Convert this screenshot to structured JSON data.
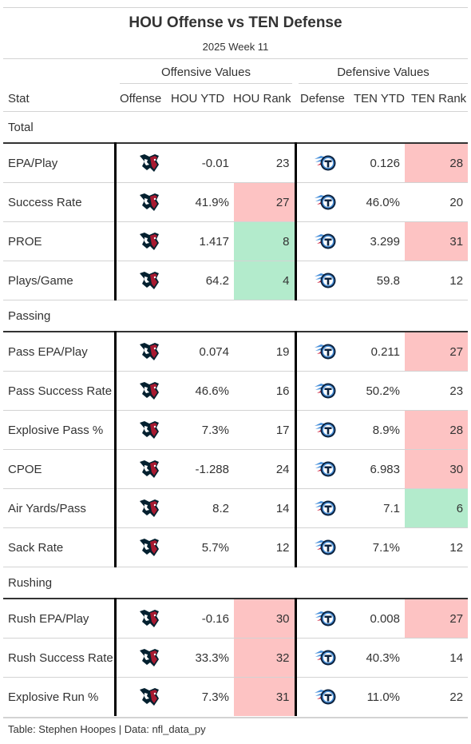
{
  "title": "HOU Offense vs TEN Defense",
  "subtitle": "2025 Week 11",
  "spanners": {
    "offense": "Offensive Values",
    "defense": "Defensive Values"
  },
  "columns": {
    "stat": "Stat",
    "offense": "Offense",
    "hou_ytd": "HOU YTD",
    "hou_rank": "HOU Rank",
    "defense": "Defense",
    "ten_ytd": "TEN YTD",
    "ten_rank": "TEN Rank"
  },
  "logos": {
    "offense": "houston-texans-logo",
    "defense": "tennessee-titans-logo"
  },
  "colors": {
    "bad": "#fdc3c3",
    "good": "#b3ebcc",
    "texans_navy": "#03202f",
    "texans_red": "#a71930",
    "titans_navy": "#0c2340",
    "titans_blue": "#4b92db"
  },
  "groups": [
    {
      "label": "Total",
      "rows": [
        {
          "stat": "EPA/Play",
          "hou_ytd": "-0.01",
          "hou_rank": "23",
          "hou_class": "",
          "ten_ytd": "0.126",
          "ten_rank": "28",
          "ten_class": "bad"
        },
        {
          "stat": "Success Rate",
          "hou_ytd": "41.9%",
          "hou_rank": "27",
          "hou_class": "bad",
          "ten_ytd": "46.0%",
          "ten_rank": "20",
          "ten_class": ""
        },
        {
          "stat": "PROE",
          "hou_ytd": "1.417",
          "hou_rank": "8",
          "hou_class": "good",
          "ten_ytd": "3.299",
          "ten_rank": "31",
          "ten_class": "bad"
        },
        {
          "stat": "Plays/Game",
          "hou_ytd": "64.2",
          "hou_rank": "4",
          "hou_class": "good",
          "ten_ytd": "59.8",
          "ten_rank": "12",
          "ten_class": ""
        }
      ]
    },
    {
      "label": "Passing",
      "rows": [
        {
          "stat": "Pass EPA/Play",
          "hou_ytd": "0.074",
          "hou_rank": "19",
          "hou_class": "",
          "ten_ytd": "0.211",
          "ten_rank": "27",
          "ten_class": "bad"
        },
        {
          "stat": "Pass Success Rate",
          "hou_ytd": "46.6%",
          "hou_rank": "16",
          "hou_class": "",
          "ten_ytd": "50.2%",
          "ten_rank": "23",
          "ten_class": ""
        },
        {
          "stat": "Explosive Pass %",
          "hou_ytd": "7.3%",
          "hou_rank": "17",
          "hou_class": "",
          "ten_ytd": "8.9%",
          "ten_rank": "28",
          "ten_class": "bad"
        },
        {
          "stat": "CPOE",
          "hou_ytd": "-1.288",
          "hou_rank": "24",
          "hou_class": "",
          "ten_ytd": "6.983",
          "ten_rank": "30",
          "ten_class": "bad"
        },
        {
          "stat": "Air Yards/Pass",
          "hou_ytd": "8.2",
          "hou_rank": "14",
          "hou_class": "",
          "ten_ytd": "7.1",
          "ten_rank": "6",
          "ten_class": "good"
        },
        {
          "stat": "Sack Rate",
          "hou_ytd": "5.7%",
          "hou_rank": "12",
          "hou_class": "",
          "ten_ytd": "7.1%",
          "ten_rank": "12",
          "ten_class": ""
        }
      ]
    },
    {
      "label": "Rushing",
      "rows": [
        {
          "stat": "Rush EPA/Play",
          "hou_ytd": "-0.16",
          "hou_rank": "30",
          "hou_class": "bad",
          "ten_ytd": "0.008",
          "ten_rank": "27",
          "ten_class": "bad"
        },
        {
          "stat": "Rush Success Rate",
          "hou_ytd": "33.3%",
          "hou_rank": "32",
          "hou_class": "bad",
          "ten_ytd": "40.3%",
          "ten_rank": "14",
          "ten_class": ""
        },
        {
          "stat": "Explosive Run %",
          "hou_ytd": "7.3%",
          "hou_rank": "31",
          "hou_class": "bad",
          "ten_ytd": "11.0%",
          "ten_rank": "22",
          "ten_class": ""
        }
      ]
    }
  ],
  "footer": "Table: Stephen Hoopes | Data: nfl_data_py"
}
